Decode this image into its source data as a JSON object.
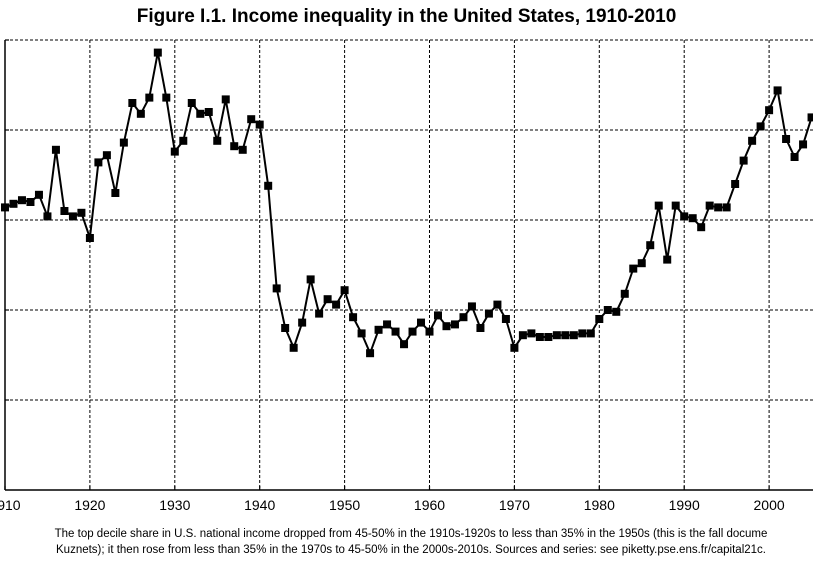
{
  "title": "Figure I.1. Income inequality in the United States, 1910-2010",
  "caption": {
    "line1": "The top decile share in U.S. national income dropped from 45-50% in the 1910s-1920s to less than 35% in the 1950s (this is the fall docume",
    "line2": "Kuznets); it then rose from less than 35% in the 1970s to 45-50% in the 2000s-2010s. Sources and series: see piketty.pse.ens.fr/capital21c."
  },
  "chart_data": {
    "type": "line",
    "title": "Figure I.1. Income inequality in the United States, 1910-2010",
    "xlabel": "",
    "ylabel": "",
    "xlim": [
      1910,
      2005
    ],
    "ylim": [
      25,
      50
    ],
    "x_ticks": [
      1910,
      1920,
      1930,
      1940,
      1950,
      1960,
      1970,
      1980,
      1990,
      2000
    ],
    "x_tick_labels": [
      "1910",
      "1920",
      "1930",
      "1940",
      "1950",
      "1960",
      "1970",
      "1980",
      "1990",
      "2000"
    ],
    "y_gridlines": [
      30,
      35,
      40,
      45,
      50
    ],
    "grid": true,
    "marker": "square",
    "color": "#000000",
    "series": [
      {
        "x": [
          1910,
          1911,
          1912,
          1913,
          1914,
          1915,
          1916,
          1917,
          1918,
          1919,
          1920,
          1921,
          1922,
          1923,
          1924,
          1925,
          1926,
          1927,
          1928,
          1929,
          1930,
          1931,
          1932,
          1933,
          1934,
          1935,
          1936,
          1937,
          1938,
          1939,
          1940,
          1941,
          1942,
          1943,
          1944,
          1945,
          1946,
          1947,
          1948,
          1949,
          1950,
          1951,
          1952,
          1953,
          1954,
          1955,
          1956,
          1957,
          1958,
          1959,
          1960,
          1961,
          1962,
          1963,
          1964,
          1965,
          1966,
          1967,
          1968,
          1969,
          1970,
          1971,
          1972,
          1973,
          1974,
          1975,
          1976,
          1977,
          1978,
          1979,
          1980,
          1981,
          1982,
          1983,
          1984,
          1985,
          1986,
          1987,
          1988,
          1989,
          1990,
          1991,
          1992,
          1993,
          1994,
          1995,
          1996,
          1997,
          1998,
          1999,
          2000,
          2001,
          2002,
          2003,
          2004,
          2005
        ],
        "values": [
          40.7,
          40.9,
          41.1,
          41.0,
          41.4,
          40.2,
          43.9,
          40.5,
          40.2,
          40.4,
          39.0,
          43.2,
          43.6,
          41.5,
          44.3,
          46.5,
          45.9,
          46.8,
          49.3,
          46.8,
          43.8,
          44.4,
          46.5,
          45.9,
          46.0,
          44.4,
          46.7,
          44.1,
          43.9,
          45.6,
          45.3,
          41.9,
          36.2,
          34.0,
          32.9,
          34.3,
          36.7,
          34.8,
          35.6,
          35.3,
          36.1,
          34.6,
          33.7,
          32.6,
          33.9,
          34.2,
          33.8,
          33.1,
          33.8,
          34.3,
          33.8,
          34.7,
          34.1,
          34.2,
          34.6,
          35.2,
          34.0,
          34.8,
          35.3,
          34.5,
          32.9,
          33.6,
          33.7,
          33.5,
          33.5,
          33.6,
          33.6,
          33.6,
          33.7,
          33.7,
          34.5,
          35.0,
          34.9,
          35.9,
          37.3,
          37.6,
          38.6,
          40.8,
          37.8,
          40.8,
          40.2,
          40.1,
          39.6,
          40.8,
          40.7,
          40.7,
          42.0,
          43.3,
          44.4,
          45.2,
          46.1,
          47.2,
          44.5,
          43.5,
          44.2,
          45.7
        ]
      }
    ]
  }
}
